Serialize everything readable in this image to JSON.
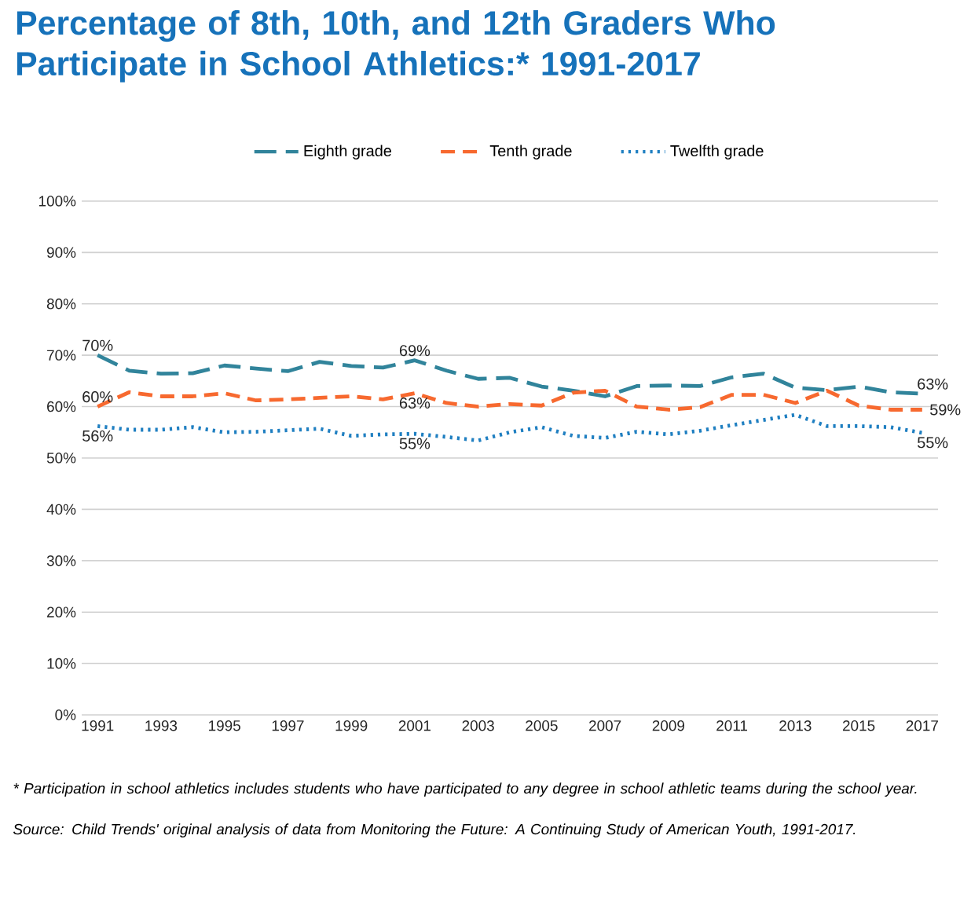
{
  "chart_data": {
    "type": "line",
    "title": "Percentage of 8th, 10th, and 12th Graders Who Participate in School Athletics:* 1991-2017",
    "x": [
      1991,
      1992,
      1993,
      1994,
      1995,
      1996,
      1997,
      1998,
      1999,
      2000,
      2001,
      2002,
      2003,
      2004,
      2005,
      2006,
      2007,
      2008,
      2009,
      2010,
      2011,
      2012,
      2013,
      2014,
      2015,
      2016,
      2017
    ],
    "series": [
      {
        "name": "Eighth grade",
        "color": "#31849b",
        "line_style": "dashed",
        "values": [
          70,
          67.0,
          66.4,
          66.5,
          68.0,
          67.4,
          66.9,
          68.7,
          67.9,
          67.6,
          69,
          67.0,
          65.4,
          65.6,
          63.9,
          63.1,
          62.0,
          64.0,
          64.1,
          64.0,
          65.7,
          66.4,
          63.7,
          63.2,
          63.9,
          62.8,
          62.5
        ],
        "value_labels": [
          "70%",
          null,
          null,
          null,
          null,
          null,
          null,
          null,
          null,
          null,
          "69%",
          null,
          null,
          null,
          null,
          null,
          null,
          null,
          null,
          null,
          null,
          null,
          null,
          null,
          null,
          null,
          "63%"
        ]
      },
      {
        "name": "Tenth grade",
        "color": "#f7692f",
        "line_style": "dashed",
        "values": [
          60.0,
          62.8,
          62.0,
          62.0,
          62.6,
          61.2,
          61.4,
          61.7,
          62.0,
          61.4,
          62.6,
          60.7,
          60.0,
          60.5,
          60.2,
          62.7,
          63.1,
          60.0,
          59.4,
          59.9,
          62.3,
          62.3,
          60.7,
          63.1,
          60.2,
          59.4,
          59.4
        ],
        "value_labels": [
          "60%",
          null,
          null,
          null,
          null,
          null,
          null,
          null,
          null,
          null,
          "63%",
          null,
          null,
          null,
          null,
          null,
          null,
          null,
          null,
          null,
          null,
          null,
          null,
          null,
          null,
          null,
          "59%"
        ]
      },
      {
        "name": "Twelfth grade",
        "color": "#1f7fc1",
        "line_style": "dotted",
        "values": [
          56.2,
          55.5,
          55.5,
          56.0,
          55.0,
          55.1,
          55.4,
          55.7,
          54.3,
          54.6,
          54.7,
          54.1,
          53.4,
          55.0,
          56.0,
          54.3,
          53.9,
          55.1,
          54.6,
          55.3,
          56.4,
          57.4,
          58.4,
          56.2,
          56.2,
          56.0,
          54.9
        ],
        "value_labels": [
          "56%",
          null,
          null,
          null,
          null,
          null,
          null,
          null,
          null,
          null,
          "55%",
          null,
          null,
          null,
          null,
          null,
          null,
          null,
          null,
          null,
          null,
          null,
          null,
          null,
          null,
          null,
          "55%"
        ]
      }
    ],
    "xlim": [
      1990.5,
      2017.5
    ],
    "ylim": [
      0,
      100
    ],
    "xticks": [
      1991,
      1993,
      1995,
      1997,
      1999,
      2001,
      2003,
      2005,
      2007,
      2009,
      2011,
      2013,
      2015,
      2017
    ],
    "yticks": [
      {
        "value": 0,
        "label": "0%"
      },
      {
        "value": 10,
        "label": "10%"
      },
      {
        "value": 20,
        "label": "20%"
      },
      {
        "value": 30,
        "label": "30%"
      },
      {
        "value": 40,
        "label": "40%"
      },
      {
        "value": 50,
        "label": "50%"
      },
      {
        "value": 60,
        "label": "60%"
      },
      {
        "value": 70,
        "label": "70%"
      },
      {
        "value": 80,
        "label": "80%"
      },
      {
        "value": 90,
        "label": "90%"
      },
      {
        "value": 100,
        "label": "100%"
      }
    ],
    "grid": "y",
    "legend": "top",
    "marker": "none",
    "annotations": [
      "* Participation in school athletics includes students who have participated to any degree in school athletic teams during the school year.",
      "Source: Child Trends' original analysis of data from Monitoring the Future: A Continuing Study of American Youth, 1991-2017."
    ]
  }
}
